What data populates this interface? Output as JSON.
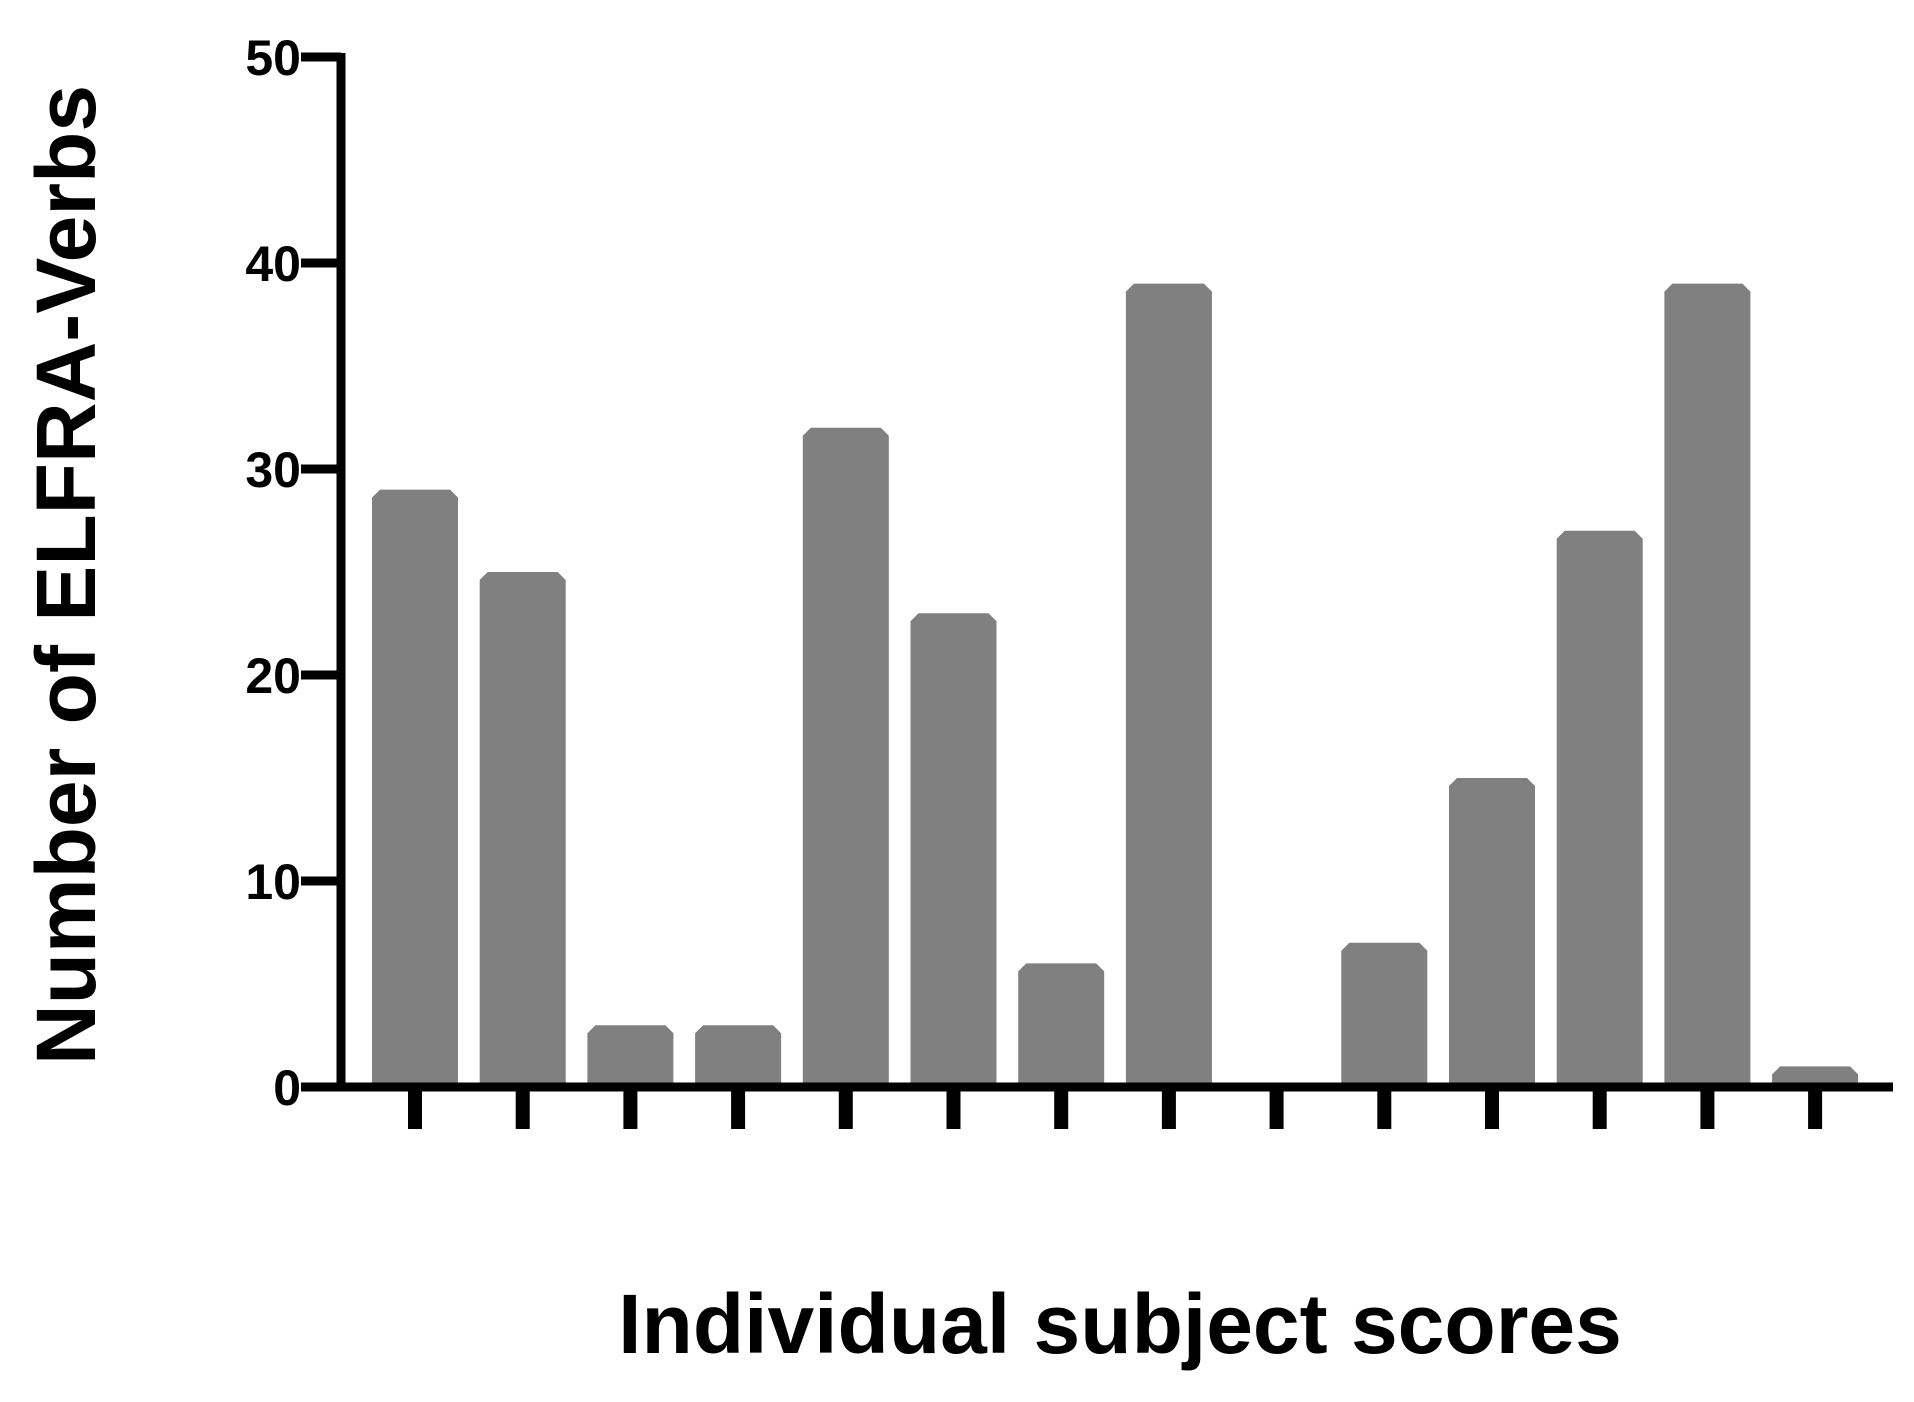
{
  "chart_data": {
    "type": "bar",
    "title": "",
    "xlabel": "Individual subject scores",
    "ylabel": "Number of ELFRA-Verbs",
    "categories": [
      "",
      "",
      "",
      "",
      "",
      "",
      "",
      "",
      "",
      "",
      "",
      "",
      "",
      ""
    ],
    "values": [
      29,
      25,
      3,
      3,
      32,
      23,
      6,
      39,
      0,
      7,
      15,
      27,
      39,
      1
    ],
    "ylim": [
      0,
      50
    ],
    "yticks": [
      0,
      10,
      20,
      30,
      40,
      50
    ],
    "ytick_labels": [
      "0",
      "10",
      "20",
      "30",
      "40",
      "50"
    ],
    "bar_color": "#808080",
    "axis_color": "#000000",
    "grid": false,
    "legend": "none"
  }
}
